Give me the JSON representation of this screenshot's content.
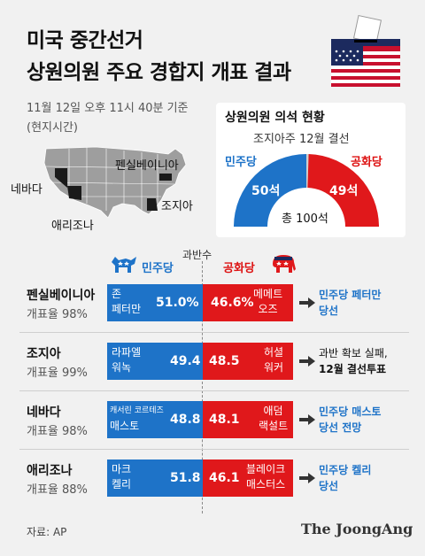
{
  "header": {
    "line1": "미국 중간선거",
    "line2": "상원의원 주요 경합지 개표 결과",
    "timestamp": "11월 12일 오후 11시 40분 기준",
    "timezone": "(현지시간)"
  },
  "map": {
    "labels": [
      "펜실베이니아",
      "네바다",
      "조지아",
      "애리조나"
    ]
  },
  "seats": {
    "title": "상원의원 의석 현황",
    "pending": "조지아주 12월 결선",
    "dem_label": "민주당",
    "rep_label": "공화당",
    "dem_seats": "50석",
    "rep_seats": "49석",
    "total": "총 100석",
    "chart_data": {
      "type": "pie",
      "categories": [
        "민주당",
        "공화당",
        "조지아주 12월 결선"
      ],
      "values": [
        50,
        49,
        1
      ]
    },
    "colors": {
      "dem": "#1e73c8",
      "rep": "#e0181b",
      "pending": "#cfcfcf"
    }
  },
  "results_header": {
    "dem": "민주당",
    "rep": "공화당",
    "majority": "과반수"
  },
  "chart_data": {
    "type": "bar",
    "categories": [
      "펜실베이니아",
      "조지아",
      "네바다",
      "애리조나"
    ],
    "series": [
      {
        "name": "민주당",
        "values": [
          51.0,
          49.4,
          48.8,
          51.8
        ]
      },
      {
        "name": "공화당",
        "values": [
          46.6,
          48.5,
          48.1,
          46.1
        ]
      }
    ]
  },
  "rows": [
    {
      "state": "펜실베이니아",
      "rate": "개표율 98%",
      "dem_cand": [
        "존",
        "페터만"
      ],
      "dem_pct": "51.0%",
      "rep_cand": [
        "메메트",
        "오즈"
      ],
      "rep_pct": "46.6%",
      "result": [
        "민주당 페터만",
        "당선"
      ],
      "result_color": "blue"
    },
    {
      "state": "조지아",
      "rate": "개표율 99%",
      "dem_cand": [
        "라파엘",
        "워녹"
      ],
      "dem_pct": "49.4",
      "rep_cand": [
        "허셜",
        "워커"
      ],
      "rep_pct": "48.5",
      "result": [
        "과반 확보 실패,",
        "12월 결선투표"
      ],
      "result_color": "black"
    },
    {
      "state": "네바다",
      "rate": "개표율 98%",
      "dem_cand": [
        "캐서린 코르테즈",
        "매스토"
      ],
      "dem_pct": "48.8",
      "rep_cand": [
        "애덤",
        "랙설트"
      ],
      "rep_pct": "48.1",
      "result": [
        "민주당 매스토",
        "당선 전망"
      ],
      "result_color": "blue"
    },
    {
      "state": "애리조나",
      "rate": "개표율 88%",
      "dem_cand": [
        "마크",
        "켈리"
      ],
      "dem_pct": "51.8",
      "rep_cand": [
        "블레이크",
        "매스터스"
      ],
      "rep_pct": "46.1",
      "result": [
        "민주당 켈리",
        "당선"
      ],
      "result_color": "blue"
    }
  ],
  "footer": {
    "source": "자료: AP",
    "brand": "The JoongAng"
  },
  "colors": {
    "dem": "#1e73c8",
    "rep": "#e0181b",
    "result_blue": "#1e73c8"
  }
}
